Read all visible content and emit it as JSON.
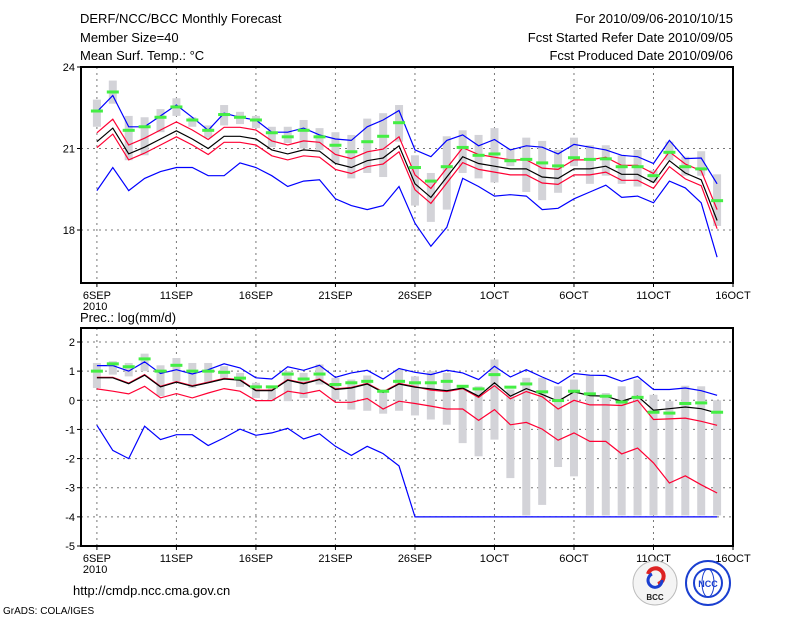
{
  "header": {
    "title": "DERF/NCC/BCC Monthly Forecast",
    "member_size": "Member Size=40",
    "variable_top": "Mean Surf. Temp.: °C",
    "for_period": "For 2010/09/06-2010/10/15",
    "started_refer": "Fcst Started Refer Date 2010/09/05",
    "produced": "Fcst Produced Date 2010/09/06"
  },
  "footer": {
    "url": "http://cmdp.ncc.cma.gov.cn",
    "credit": "GrADS: COLA/IGES",
    "logo_bcc": "BCC",
    "logo_ncc": "NCC"
  },
  "colors": {
    "max_min": "#0000ff",
    "quartile": "#ff0033",
    "median": "#000000",
    "mean": "#44ee44",
    "box": "#d3d3d8"
  },
  "chart_data": [
    {
      "type": "line",
      "title": "Mean Surf. Temp.: °C",
      "x_start": "6SEP2010",
      "xlim_days": [
        -1,
        40
      ],
      "x_ticks": [
        {
          "day": 0,
          "label": "6SEP"
        },
        {
          "day": 5,
          "label": "11SEP"
        },
        {
          "day": 10,
          "label": "16SEP"
        },
        {
          "day": 15,
          "label": "21SEP"
        },
        {
          "day": 20,
          "label": "26SEP"
        },
        {
          "day": 25,
          "label": "1OCT"
        },
        {
          "day": 30,
          "label": "6OCT"
        },
        {
          "day": 35,
          "label": "11OCT"
        },
        {
          "day": 40,
          "label": "16OCT"
        }
      ],
      "year_label": "2010",
      "ylim": [
        16.05,
        24
      ],
      "y_ticks": [
        18,
        21,
        24
      ],
      "grid": true,
      "series": {
        "max": [
          22.35,
          22.95,
          21.8,
          21.8,
          22.2,
          22.6,
          22.15,
          21.67,
          22.3,
          22.15,
          22.05,
          21.6,
          21.6,
          21.75,
          21.5,
          21.35,
          21.3,
          21.8,
          22.05,
          22.4,
          20.95,
          20.7,
          21.3,
          21.5,
          21.1,
          21.33,
          20.95,
          21.1,
          21.05,
          20.8,
          21.15,
          21.05,
          20.95,
          20.75,
          20.7,
          20.45,
          21.3,
          20.63,
          20.65,
          19.7
        ],
        "min": [
          19.45,
          20.3,
          19.45,
          19.9,
          20.15,
          20.3,
          20.3,
          20.0,
          20.0,
          20.47,
          20.3,
          20.0,
          19.6,
          19.8,
          19.85,
          19.15,
          18.9,
          18.75,
          18.9,
          19.6,
          18.25,
          17.4,
          18.1,
          19.9,
          19.6,
          19.25,
          19.3,
          19.25,
          18.75,
          18.8,
          19.15,
          19.4,
          19.65,
          19.2,
          19.25,
          19.0,
          19.8,
          19.55,
          19.0,
          17.0
        ],
        "upper_quartile": [
          21.58,
          22.08,
          21.13,
          21.38,
          21.68,
          21.98,
          21.68,
          21.33,
          21.78,
          21.78,
          21.68,
          21.28,
          21.13,
          21.28,
          21.23,
          20.78,
          20.63,
          20.88,
          20.98,
          21.43,
          20.03,
          19.53,
          20.28,
          21.03,
          20.78,
          20.68,
          20.58,
          20.58,
          20.28,
          20.23,
          20.58,
          20.58,
          20.68,
          20.38,
          20.38,
          20.08,
          20.88,
          20.43,
          20.18,
          18.75
        ],
        "median": [
          21.25,
          21.75,
          20.8,
          21.05,
          21.35,
          21.65,
          21.35,
          21.0,
          21.45,
          21.45,
          21.35,
          20.95,
          20.8,
          20.95,
          20.9,
          20.45,
          20.3,
          20.55,
          20.65,
          21.1,
          19.7,
          19.2,
          19.95,
          20.7,
          20.45,
          20.35,
          20.25,
          20.25,
          19.95,
          19.9,
          20.25,
          20.25,
          20.35,
          20.05,
          20.05,
          19.75,
          20.55,
          20.1,
          19.85,
          18.35
        ],
        "lower_quartile": [
          21.03,
          21.53,
          20.58,
          20.83,
          21.13,
          21.43,
          21.13,
          20.78,
          21.23,
          21.23,
          21.13,
          20.73,
          20.58,
          20.73,
          20.68,
          20.23,
          20.08,
          20.33,
          20.43,
          20.88,
          19.48,
          18.98,
          19.73,
          20.48,
          20.23,
          20.13,
          20.03,
          20.03,
          19.73,
          19.68,
          20.03,
          20.03,
          20.13,
          19.83,
          19.83,
          19.53,
          20.33,
          19.88,
          19.63,
          18.05
        ],
        "mean": [
          22.38,
          23.08,
          21.67,
          21.8,
          22.15,
          22.53,
          22.05,
          21.67,
          22.25,
          22.15,
          22.05,
          21.58,
          21.43,
          21.67,
          21.43,
          21.12,
          20.88,
          21.25,
          21.45,
          21.95,
          20.3,
          19.8,
          20.33,
          21.04,
          20.75,
          20.8,
          20.55,
          20.6,
          20.47,
          20.36,
          20.66,
          20.6,
          20.62,
          20.33,
          20.33,
          20.0,
          20.86,
          20.33,
          20.25,
          19.08
        ],
        "box_high": [
          22.8,
          23.5,
          22.2,
          22.15,
          22.45,
          22.85,
          22.15,
          21.85,
          22.6,
          22.35,
          22.2,
          21.8,
          21.8,
          22.05,
          21.75,
          21.6,
          21.5,
          22.1,
          22.3,
          22.6,
          20.75,
          20.1,
          21.45,
          21.67,
          21.5,
          21.75,
          21.0,
          21.4,
          21.28,
          20.95,
          21.4,
          21.12,
          21.12,
          20.75,
          20.95,
          20.2,
          21.25,
          20.7,
          20.9,
          20.05
        ],
        "box_low": [
          21.8,
          22.65,
          20.57,
          20.75,
          21.6,
          22.2,
          21.8,
          21.4,
          21.85,
          21.9,
          21.75,
          21.05,
          21.2,
          21.0,
          20.95,
          20.45,
          19.9,
          20.1,
          19.95,
          21.25,
          18.9,
          18.3,
          18.75,
          20.1,
          19.9,
          19.75,
          20.35,
          19.4,
          19.1,
          19.37,
          20.35,
          19.7,
          20.0,
          19.7,
          19.6,
          19.74,
          20.57,
          20.0,
          20.0,
          18.15
        ]
      }
    },
    {
      "type": "line",
      "title": "Prec.: log(mm/d)",
      "x_start": "6SEP2010",
      "xlim_days": [
        -1,
        40
      ],
      "x_ticks": [
        {
          "day": 0,
          "label": "6SEP"
        },
        {
          "day": 5,
          "label": "11SEP"
        },
        {
          "day": 10,
          "label": "16SEP"
        },
        {
          "day": 15,
          "label": "21SEP"
        },
        {
          "day": 20,
          "label": "26SEP"
        },
        {
          "day": 25,
          "label": "1OCT"
        },
        {
          "day": 30,
          "label": "6OCT"
        },
        {
          "day": 35,
          "label": "11OCT"
        },
        {
          "day": 40,
          "label": "16OCT"
        }
      ],
      "year_label": "2010",
      "ylim": [
        -5,
        2.48
      ],
      "y_ticks": [
        -5,
        -4,
        -3,
        -2,
        -1,
        0,
        1,
        2
      ],
      "grid": true,
      "series": {
        "max": [
          1.19,
          1.19,
          1.0,
          1.32,
          0.92,
          1.05,
          0.9,
          1.05,
          1.25,
          1.11,
          0.77,
          0.73,
          1.15,
          1.03,
          1.2,
          0.79,
          0.94,
          1.03,
          0.73,
          1.09,
          0.96,
          0.88,
          1.03,
          0.94,
          0.71,
          1.17,
          0.8,
          1.05,
          0.8,
          0.57,
          0.92,
          0.86,
          0.85,
          0.65,
          0.82,
          0.37,
          0.37,
          0.42,
          0.33,
          0.17
        ],
        "min": [
          -0.86,
          -1.72,
          -2.0,
          -0.89,
          -1.35,
          -1.18,
          -1.18,
          -1.55,
          -1.29,
          -0.99,
          -1.2,
          -1.12,
          -0.96,
          -1.33,
          -1.15,
          -1.58,
          -1.89,
          -1.58,
          -1.83,
          -2.25,
          -4,
          -4,
          -4,
          -4,
          -4,
          -4,
          -4,
          -4,
          -4,
          -4,
          -4,
          -4,
          -4,
          -4,
          -4,
          -4,
          -4,
          -4,
          -4,
          -4
        ],
        "upper_quartile": [
          0.79,
          0.79,
          0.59,
          0.88,
          0.48,
          0.64,
          0.5,
          0.62,
          0.75,
          0.71,
          0.35,
          0.35,
          0.71,
          0.59,
          0.73,
          0.39,
          0.44,
          0.58,
          0.29,
          0.58,
          0.47,
          0.35,
          0.3,
          0.4,
          0.1,
          0.5,
          0.05,
          0.3,
          0.12,
          -0.3,
          0.0,
          -0.16,
          -0.16,
          -0.18,
          0.0,
          -0.66,
          -0.64,
          -0.61,
          -0.72,
          -0.86
        ],
        "median": [
          0.77,
          0.77,
          0.57,
          0.86,
          0.46,
          0.62,
          0.48,
          0.6,
          0.73,
          0.69,
          0.33,
          0.33,
          0.69,
          0.57,
          0.71,
          0.37,
          0.42,
          0.56,
          0.27,
          0.56,
          0.45,
          0.39,
          0.33,
          0.42,
          0.14,
          0.6,
          0.14,
          0.4,
          0.2,
          -0.03,
          0.29,
          0.16,
          0.14,
          -0.03,
          0.14,
          -0.34,
          -0.29,
          -0.23,
          -0.29,
          -0.44
        ],
        "lower_quartile": [
          0.39,
          0.31,
          0.22,
          0.48,
          0.08,
          0.23,
          0.08,
          0.25,
          0.4,
          0.31,
          -0.01,
          -0.01,
          0.31,
          0.23,
          0.34,
          -0.07,
          -0.07,
          0.06,
          -0.3,
          -0.03,
          -0.11,
          -0.2,
          -0.3,
          -0.3,
          -0.69,
          -0.32,
          -0.84,
          -0.76,
          -0.99,
          -1.37,
          -1.12,
          -1.41,
          -1.41,
          -1.84,
          -1.64,
          -2.15,
          -2.84,
          -2.59,
          -2.9,
          -3.18
        ],
        "mean": [
          1.0,
          1.25,
          1.15,
          1.42,
          1.0,
          1.2,
          1.0,
          1.0,
          0.96,
          0.76,
          0.46,
          0.46,
          0.9,
          0.73,
          0.9,
          0.54,
          0.6,
          0.65,
          0.31,
          0.65,
          0.6,
          0.6,
          0.65,
          0.48,
          0.39,
          0.88,
          0.45,
          0.56,
          0.29,
          -0.01,
          0.31,
          0.22,
          0.14,
          -0.06,
          0.1,
          -0.41,
          -0.44,
          -0.11,
          -0.09,
          -0.41
        ],
        "box_high": [
          1.28,
          1.34,
          1.28,
          1.6,
          1.2,
          1.45,
          1.28,
          1.28,
          1.17,
          0.94,
          0.6,
          0.42,
          1.0,
          0.94,
          1.23,
          0.77,
          0.71,
          0.85,
          0.37,
          1.05,
          0.82,
          1.0,
          0.94,
          0.48,
          0.48,
          1.4,
          0.37,
          0.77,
          0.77,
          0.48,
          0.71,
          0.88,
          0.25,
          0.48,
          0.71,
          0.19,
          -0.03,
          0.5,
          0.48,
          0.0
        ],
        "box_low": [
          0.42,
          0.88,
          0.82,
          1.0,
          0.14,
          0.65,
          0.42,
          0.6,
          0.77,
          0.46,
          0.08,
          0.02,
          -0.03,
          0.08,
          0.54,
          0.02,
          -0.32,
          -0.36,
          -0.46,
          -0.36,
          -0.52,
          -0.66,
          -0.84,
          -1.47,
          -1.92,
          -1.35,
          -2.67,
          -3.95,
          -3.59,
          -2.29,
          -2.61,
          -3.95,
          -3.95,
          -3.95,
          -3.95,
          -3.95,
          -3.95,
          -3.95,
          -3.95,
          -3.95
        ]
      }
    }
  ]
}
